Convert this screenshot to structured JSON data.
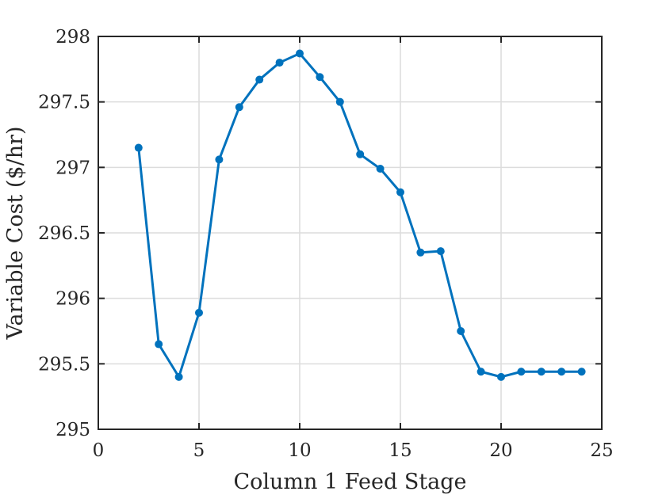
{
  "chart_data": {
    "type": "line",
    "title": "",
    "xlabel": "Column 1 Feed Stage",
    "ylabel": "Variable Cost ($/hr)",
    "xlim": [
      0,
      25
    ],
    "ylim": [
      295,
      298
    ],
    "xticks": [
      0,
      5,
      10,
      15,
      20,
      25
    ],
    "yticks": [
      295,
      295.5,
      296,
      296.5,
      297,
      297.5,
      298
    ],
    "xtick_labels": [
      "0",
      "5",
      "10",
      "15",
      "20",
      "25"
    ],
    "ytick_labels": [
      "295",
      "295.5",
      "296",
      "296.5",
      "297",
      "297.5",
      "298"
    ],
    "grid": true,
    "series": [
      {
        "color": "#0072BD",
        "marker": "circle",
        "x": [
          2,
          3,
          4,
          5,
          6,
          7,
          8,
          9,
          10,
          11,
          12,
          13,
          14,
          15,
          16,
          17,
          18,
          19,
          20,
          21,
          22,
          23,
          24
        ],
        "y": [
          297.15,
          295.65,
          295.4,
          295.89,
          297.06,
          297.46,
          297.67,
          297.8,
          297.87,
          297.69,
          297.5,
          297.1,
          296.99,
          296.81,
          296.35,
          296.36,
          295.75,
          295.44,
          295.4,
          295.44,
          295.44,
          295.44,
          295.44
        ]
      }
    ]
  }
}
